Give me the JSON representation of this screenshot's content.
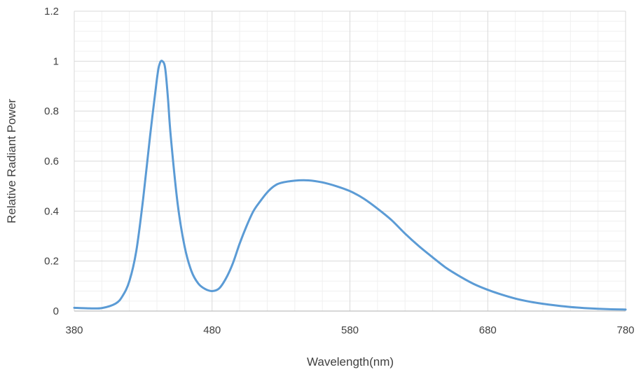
{
  "chart_data": {
    "type": "line",
    "title": "",
    "xlabel": "Wavelength(nm)",
    "ylabel": "Relative Radiant Power",
    "xlim": [
      380,
      780
    ],
    "ylim": [
      0,
      1.2
    ],
    "x_ticks": [
      "380",
      "480",
      "580",
      "680",
      "780"
    ],
    "y_ticks": [
      "0",
      "0.2",
      "0.4",
      "0.6",
      "0.8",
      "1",
      "1.2"
    ],
    "grid": "on",
    "legend": "none",
    "series": [
      {
        "color": "#5b9bd5",
        "x": [
          380,
          390,
          400,
          410,
          415,
          420,
          425,
          430,
          435,
          440,
          442,
          444,
          446,
          448,
          450,
          455,
          460,
          465,
          470,
          475,
          480,
          485,
          490,
          495,
          500,
          505,
          510,
          515,
          520,
          525,
          530,
          540,
          550,
          560,
          570,
          580,
          590,
          600,
          610,
          620,
          630,
          640,
          650,
          660,
          670,
          680,
          690,
          700,
          710,
          720,
          730,
          740,
          750,
          760,
          770,
          780
        ],
        "values": [
          0.013,
          0.011,
          0.012,
          0.03,
          0.06,
          0.12,
          0.24,
          0.45,
          0.7,
          0.93,
          0.99,
          1.0,
          0.97,
          0.85,
          0.7,
          0.43,
          0.26,
          0.16,
          0.11,
          0.088,
          0.08,
          0.09,
          0.13,
          0.19,
          0.27,
          0.34,
          0.4,
          0.44,
          0.475,
          0.5,
          0.513,
          0.522,
          0.523,
          0.515,
          0.5,
          0.48,
          0.45,
          0.41,
          0.365,
          0.31,
          0.26,
          0.215,
          0.172,
          0.138,
          0.108,
          0.085,
          0.066,
          0.05,
          0.038,
          0.029,
          0.022,
          0.016,
          0.012,
          0.009,
          0.007,
          0.006
        ]
      }
    ]
  }
}
